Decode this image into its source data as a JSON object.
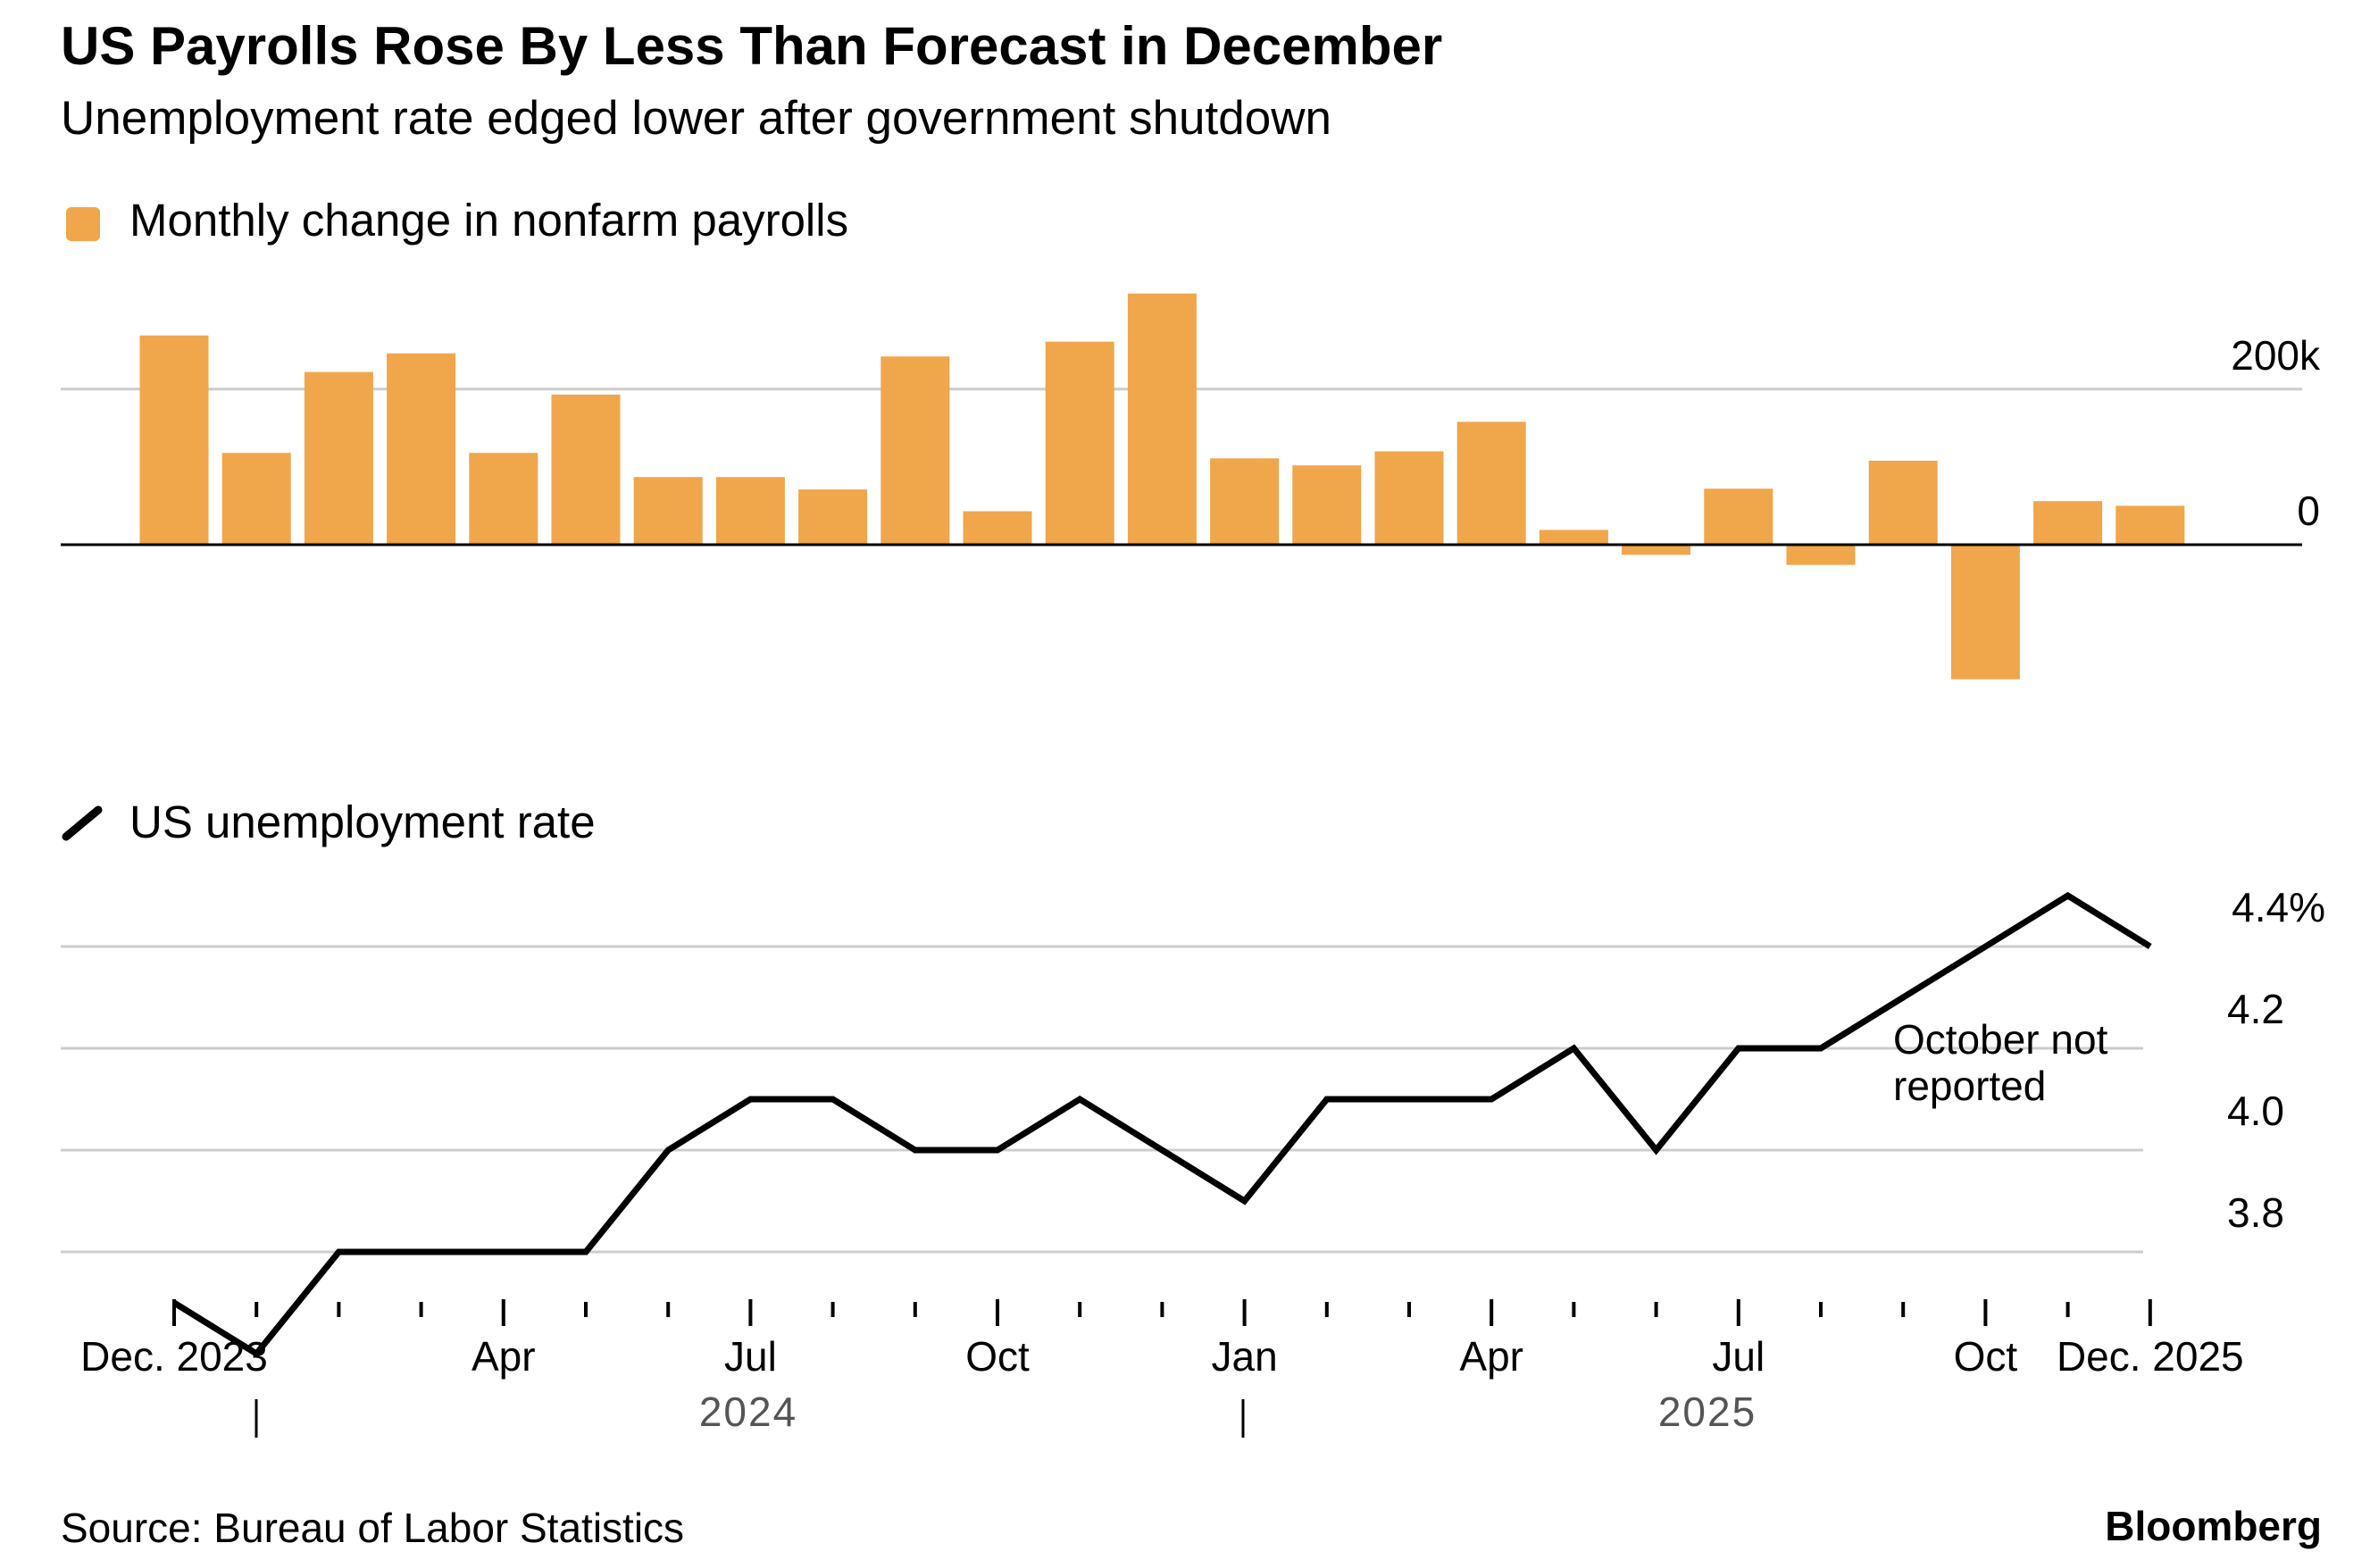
{
  "title": "US Payrolls Rose By Less Than Forecast in December",
  "subtitle": "Unemployment rate edged lower after government shutdown",
  "source": "Source: Bureau of Labor Statistics",
  "brand": "Bloomberg",
  "colors": {
    "bar": "#f0a64a",
    "line": "#000000",
    "grid": "#cccccc",
    "axis": "#000000",
    "year_label": "#555555"
  },
  "x_axis": {
    "ticks": [
      {
        "index": 0,
        "label": "Dec. 2023"
      },
      {
        "index": 4,
        "label": "Apr"
      },
      {
        "index": 7,
        "label": "Jul"
      },
      {
        "index": 10,
        "label": "Oct"
      },
      {
        "index": 13,
        "label": "Jan"
      },
      {
        "index": 16,
        "label": "Apr"
      },
      {
        "index": 19,
        "label": "Jul"
      },
      {
        "index": 22,
        "label": "Oct"
      },
      {
        "index": 24,
        "label": "Dec. 2025"
      }
    ],
    "years": [
      "2024",
      "2025"
    ]
  },
  "chart_data": [
    {
      "type": "bar",
      "legend": "Monthly change in nonfarm payrolls",
      "categories": [
        "Dec 2023",
        "Jan 2024",
        "Feb 2024",
        "Mar 2024",
        "Apr 2024",
        "May 2024",
        "Jun 2024",
        "Jul 2024",
        "Aug 2024",
        "Sep 2024",
        "Oct 2024",
        "Nov 2024",
        "Dec 2024",
        "Jan 2025",
        "Feb 2025",
        "Mar 2025",
        "Apr 2025",
        "May 2025",
        "Jun 2025",
        "Jul 2025",
        "Aug 2025",
        "Sep 2025",
        "Oct 2025",
        "Nov 2025",
        "Dec 2025"
      ],
      "values": [
        269,
        118,
        222,
        246,
        118,
        193,
        87,
        87,
        71,
        242,
        43,
        261,
        323,
        111,
        102,
        120,
        158,
        19,
        -13,
        72,
        -26,
        108,
        -173,
        56,
        50
      ],
      "ylim": [
        -200,
        340
      ],
      "yticks": [
        {
          "value": 0,
          "label": "0"
        },
        {
          "value": 200,
          "label": "200k"
        }
      ]
    },
    {
      "type": "line",
      "legend": "US unemployment rate",
      "categories": [
        "Dec 2023",
        "Jan 2024",
        "Feb 2024",
        "Mar 2024",
        "Apr 2024",
        "May 2024",
        "Jun 2024",
        "Jul 2024",
        "Aug 2024",
        "Sep 2024",
        "Oct 2024",
        "Nov 2024",
        "Dec 2024",
        "Jan 2025",
        "Feb 2025",
        "Mar 2025",
        "Apr 2025",
        "May 2025",
        "Jun 2025",
        "Jul 2025",
        "Aug 2025",
        "Sep 2025",
        "Oct 2025",
        "Nov 2025",
        "Dec 2025"
      ],
      "values": [
        3.7,
        3.6,
        3.8,
        3.8,
        3.8,
        3.8,
        4.0,
        4.1,
        4.1,
        4.0,
        4.0,
        4.1,
        4.0,
        3.9,
        4.1,
        4.1,
        4.1,
        4.2,
        4.0,
        4.2,
        4.2,
        4.3,
        null,
        4.5,
        4.4
      ],
      "ylim": [
        3.6,
        4.5
      ],
      "yticks": [
        {
          "value": 3.8,
          "label": "3.8"
        },
        {
          "value": 4.0,
          "label": "4.0"
        },
        {
          "value": 4.2,
          "label": "4.2"
        },
        {
          "value": 4.4,
          "label": "4.4%"
        }
      ],
      "annotation": [
        "October not",
        "reported"
      ]
    }
  ]
}
